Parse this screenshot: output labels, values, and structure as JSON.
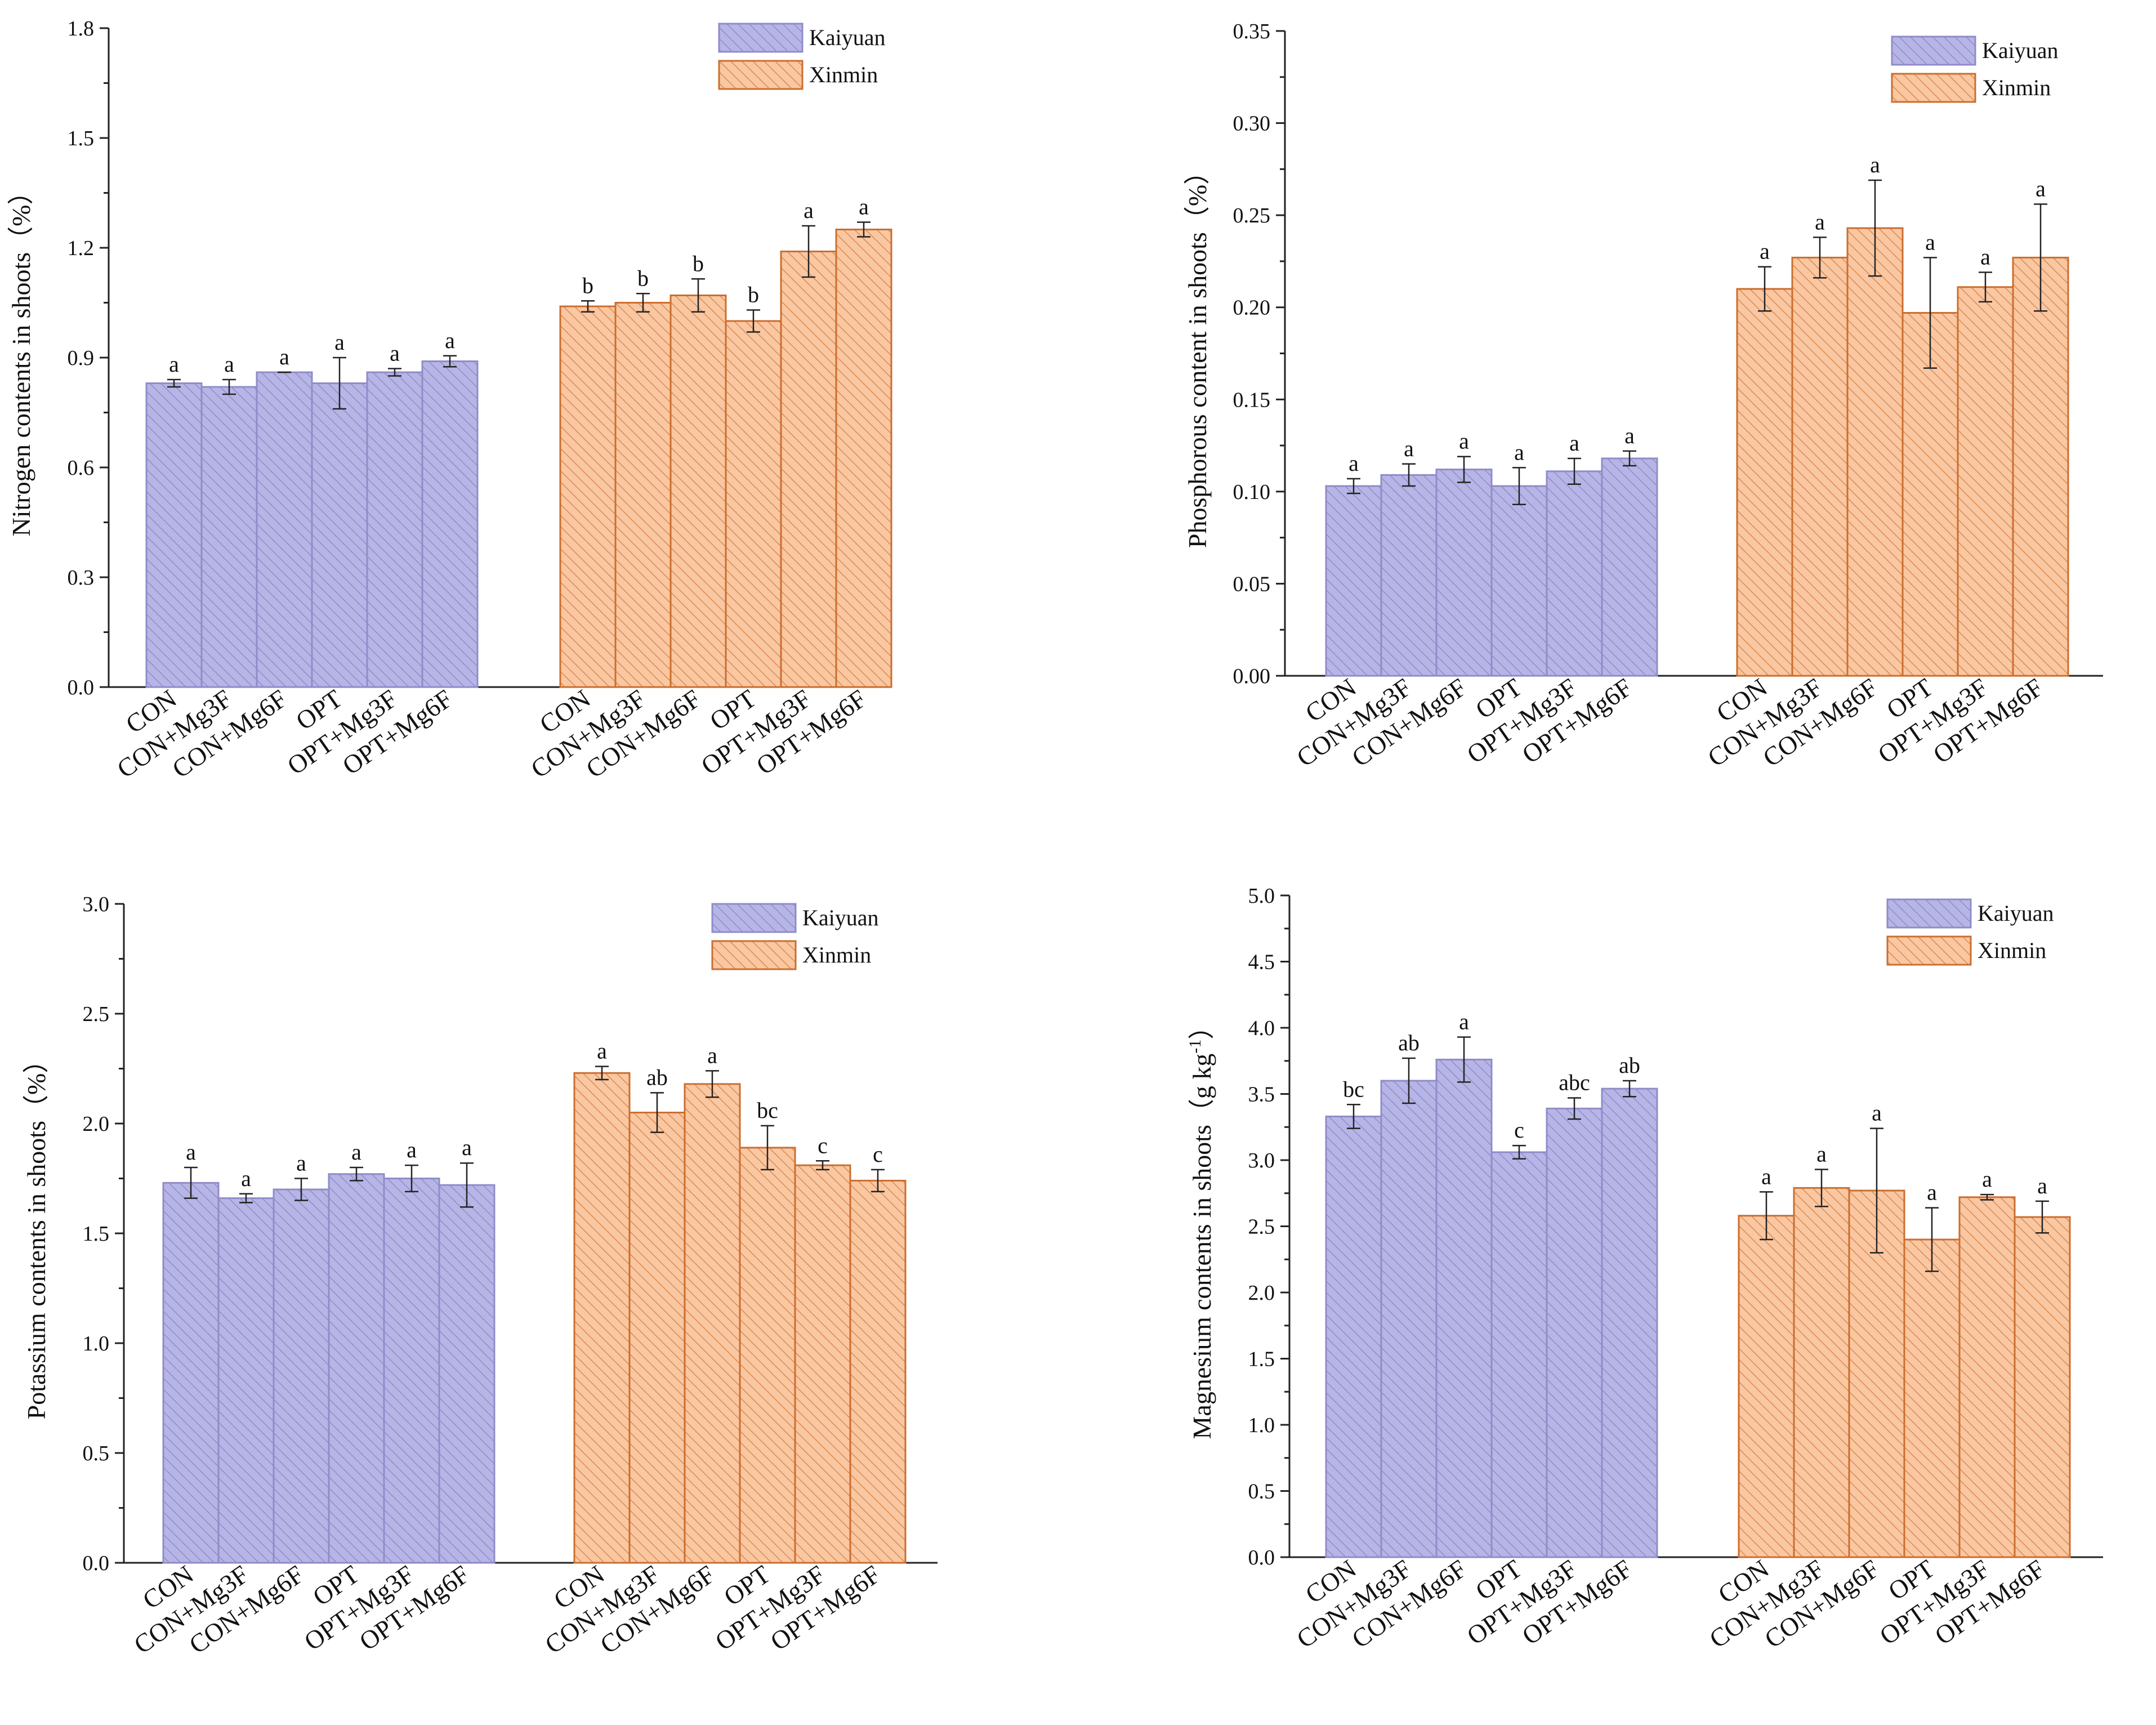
{
  "figure": {
    "legend_labels": [
      "Kaiyuan",
      "Xinmin"
    ],
    "colors": {
      "Kaiyuan": "#b7b5e6",
      "Kaiyuan_edge": "#8f8cc9",
      "Xinmin": "#f9c7a2",
      "Xinmin_edge": "#cc6e2e"
    }
  },
  "chart_data": [
    {
      "type": "bar",
      "ylabel": "Nitrogen contents in shoots（%）",
      "ylim": [
        0,
        1.8
      ],
      "yticks": [
        "0.0",
        "0.3",
        "0.6",
        "0.9",
        "1.2",
        "1.5",
        "1.8"
      ],
      "categories": [
        "CON",
        "CON+Mg3F",
        "CON+Mg6F",
        "OPT",
        "OPT+Mg3F",
        "OPT+Mg6F"
      ],
      "legend_position": "top-right",
      "series": [
        {
          "name": "Kaiyuan",
          "values": [
            0.83,
            0.82,
            0.86,
            0.83,
            0.86,
            0.89
          ],
          "errors": [
            0.01,
            0.02,
            0.0,
            0.07,
            0.01,
            0.015
          ],
          "letters": [
            "a",
            "a",
            "a",
            "a",
            "a",
            "a"
          ]
        },
        {
          "name": "Xinmin",
          "values": [
            1.04,
            1.05,
            1.07,
            1.0,
            1.19,
            1.25
          ],
          "errors": [
            0.015,
            0.025,
            0.045,
            0.03,
            0.07,
            0.02
          ],
          "letters": [
            "b",
            "b",
            "b",
            "b",
            "a",
            "a"
          ]
        }
      ]
    },
    {
      "type": "bar",
      "ylabel": "Phosphorous content in shoots（%）",
      "ylim": [
        0,
        0.35
      ],
      "yticks": [
        "0.00",
        "0.05",
        "0.10",
        "0.15",
        "0.20",
        "0.25",
        "0.30",
        "0.35"
      ],
      "categories": [
        "CON",
        "CON+Mg3F",
        "CON+Mg6F",
        "OPT",
        "OPT+Mg3F",
        "OPT+Mg6F"
      ],
      "legend_position": "top-right",
      "series": [
        {
          "name": "Kaiyuan",
          "values": [
            0.103,
            0.109,
            0.112,
            0.103,
            0.111,
            0.118
          ],
          "errors": [
            0.004,
            0.006,
            0.007,
            0.01,
            0.007,
            0.004
          ],
          "letters": [
            "a",
            "a",
            "a",
            "a",
            "a",
            "a"
          ]
        },
        {
          "name": "Xinmin",
          "values": [
            0.21,
            0.227,
            0.243,
            0.197,
            0.211,
            0.227
          ],
          "errors": [
            0.012,
            0.011,
            0.026,
            0.03,
            0.008,
            0.029
          ],
          "letters": [
            "a",
            "a",
            "a",
            "a",
            "a",
            "a"
          ]
        }
      ]
    },
    {
      "type": "bar",
      "ylabel": "Potassium contents in shoots（%）",
      "ylim": [
        0,
        3.0
      ],
      "yticks": [
        "0.0",
        "0.5",
        "1.0",
        "1.5",
        "2.0",
        "2.5",
        "3.0"
      ],
      "categories": [
        "CON",
        "CON+Mg3F",
        "CON+Mg6F",
        "OPT",
        "OPT+Mg3F",
        "OPT+Mg6F"
      ],
      "legend_position": "top-right",
      "series": [
        {
          "name": "Kaiyuan",
          "values": [
            1.73,
            1.66,
            1.7,
            1.77,
            1.75,
            1.72
          ],
          "errors": [
            0.07,
            0.02,
            0.05,
            0.03,
            0.06,
            0.1
          ],
          "letters": [
            "a",
            "a",
            "a",
            "a",
            "a",
            "a"
          ]
        },
        {
          "name": "Xinmin",
          "values": [
            2.23,
            2.05,
            2.18,
            1.89,
            1.81,
            1.74
          ],
          "errors": [
            0.03,
            0.09,
            0.06,
            0.1,
            0.02,
            0.05
          ],
          "letters": [
            "a",
            "ab",
            "a",
            "bc",
            "c",
            "c"
          ]
        }
      ]
    },
    {
      "type": "bar",
      "ylabel": "Magnesium contents in shoots（g kg",
      "ylabel_sup": "-1",
      "ylabel_end": "）",
      "ylim": [
        0,
        5.0
      ],
      "yticks": [
        "0.0",
        "0.5",
        "1.0",
        "1.5",
        "2.0",
        "2.5",
        "3.0",
        "3.5",
        "4.0",
        "4.5",
        "5.0"
      ],
      "categories": [
        "CON",
        "CON+Mg3F",
        "CON+Mg6F",
        "OPT",
        "OPT+Mg3F",
        "OPT+Mg6F"
      ],
      "legend_position": "top-right",
      "series": [
        {
          "name": "Kaiyuan",
          "values": [
            3.33,
            3.6,
            3.76,
            3.06,
            3.39,
            3.54
          ],
          "errors": [
            0.09,
            0.17,
            0.17,
            0.05,
            0.08,
            0.06
          ],
          "letters": [
            "bc",
            "ab",
            "a",
            "c",
            "abc",
            "ab"
          ]
        },
        {
          "name": "Xinmin",
          "values": [
            2.58,
            2.79,
            2.77,
            2.4,
            2.72,
            2.57
          ],
          "errors": [
            0.18,
            0.14,
            0.47,
            0.24,
            0.02,
            0.12
          ],
          "letters": [
            "a",
            "a",
            "a",
            "a",
            "a",
            "a"
          ]
        }
      ]
    }
  ]
}
